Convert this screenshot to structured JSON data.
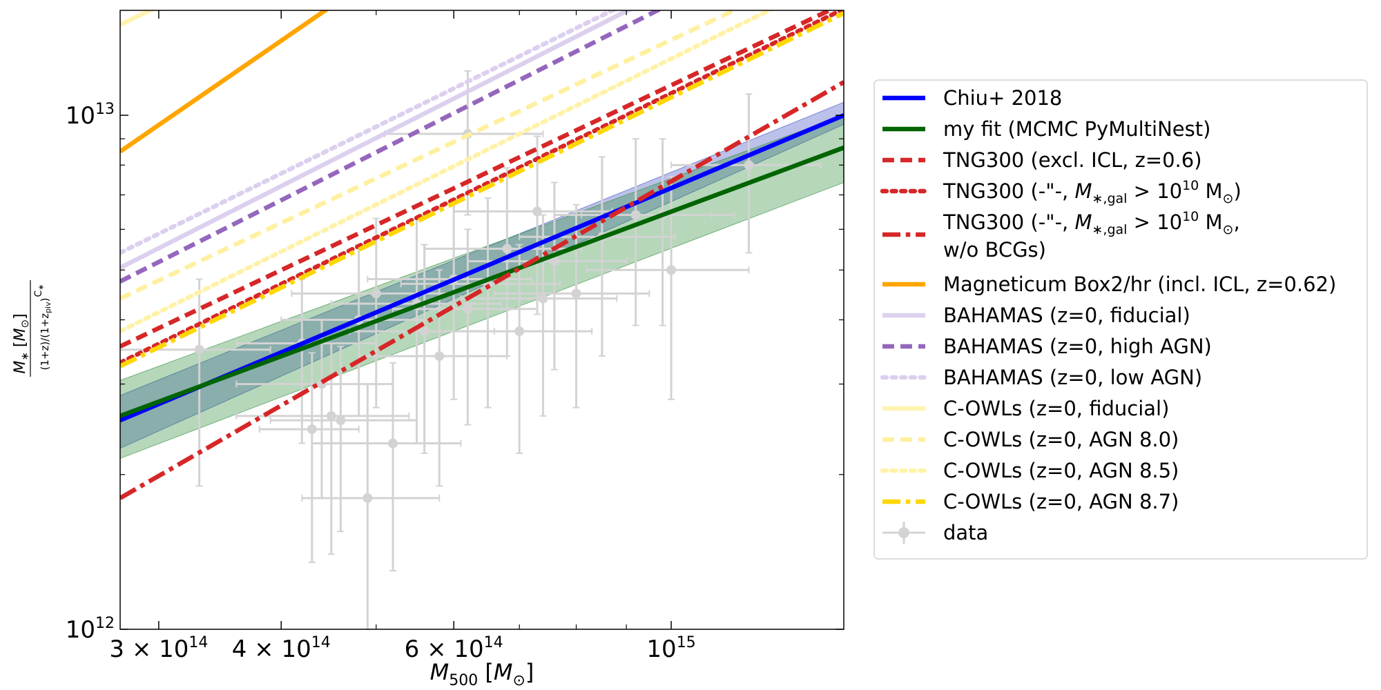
{
  "chart_data": {
    "type": "line",
    "title": "",
    "xlabel": "M500 [M⊙]",
    "ylabel": "M∗ [M⊙] / ((1+z)/(1+z_piv))^C∗",
    "xscale": "log",
    "yscale": "log",
    "xlim": [
      274000000000000.0,
      1500000000000000.0
    ],
    "ylim": [
      1000000000000.0,
      16000000000000.0
    ],
    "grid": false,
    "legend_position": "right, outside plot",
    "x_major_ticks": [
      {
        "value": 300000000000000.0,
        "label": "3×10^14",
        "base": "3 × 10",
        "exp": "14"
      },
      {
        "value": 400000000000000.0,
        "label": "4×10^14",
        "base": "4 × 10",
        "exp": "14"
      },
      {
        "value": 600000000000000.0,
        "label": "6×10^14",
        "base": "6 × 10",
        "exp": "14"
      },
      {
        "value": 1000000000000000.0,
        "label": "10^15",
        "base": "10",
        "exp": "15"
      }
    ],
    "y_major_ticks": [
      {
        "value": 1000000000000.0,
        "label": "10^12",
        "base": "10",
        "exp": "12"
      },
      {
        "value": 10000000000000.0,
        "label": "10^13",
        "base": "10",
        "exp": "13"
      }
    ],
    "x_minor_ticks": [
      500000000000000.0,
      700000000000000.0,
      800000000000000.0,
      900000000000000.0
    ],
    "y_minor_ticks": [
      2000000000000.0,
      3000000000000.0,
      4000000000000.0,
      5000000000000.0,
      6000000000000.0,
      7000000000000.0,
      8000000000000.0,
      9000000000000.0
    ],
    "series": [
      {
        "name": "Chiu+ 2018",
        "color": "#0000ff",
        "dash": "solid",
        "x": [
          274000000000000.0,
          1500000000000000.0
        ],
        "y": [
          2550000000000.0,
          10000000000000.0
        ],
        "band": {
          "color": "#3b4cc0",
          "lower": [
            2250000000000.0,
            9600000000000.0
          ],
          "upper": [
            2850000000000.0,
            10600000000000.0
          ]
        }
      },
      {
        "name": "my fit (MCMC PyMultiNest)",
        "color": "#006400",
        "dash": "solid",
        "x": [
          274000000000000.0,
          1500000000000000.0
        ],
        "y": [
          2600000000000.0,
          8650000000000.0
        ],
        "band": {
          "color": "#2e8b3a",
          "lower": [
            2150000000000.0,
            7400000000000.0
          ],
          "upper": [
            3050000000000.0,
            10000000000000.0
          ]
        }
      },
      {
        "name": "TNG300 (excl. ICL, z=0.6)",
        "color": "#d62728",
        "dash": "dashed",
        "x": [
          274000000000000.0,
          1500000000000000.0
        ],
        "y": [
          3550000000000.0,
          16500000000000.0
        ]
      },
      {
        "name": "TNG300 (-\"-, M∗,gal > 10^10 M⊙)",
        "color": "#d62728",
        "dash": "dotted",
        "x": [
          274000000000000.0,
          1500000000000000.0
        ],
        "y": [
          3300000000000.0,
          16100000000000.0
        ]
      },
      {
        "name": "TNG300 (-\"-, M∗,gal > 10^10 M⊙, w/o BCGs)",
        "color": "#d62728",
        "dash": "dashdot",
        "x": [
          274000000000000.0,
          1500000000000000.0
        ],
        "y": [
          1800000000000.0,
          11600000000000.0
        ]
      },
      {
        "name": "Magneticum Box2/hr (incl. ICL, z=0.62)",
        "color": "#ffa500",
        "dash": "solid",
        "x": [
          274000000000000.0,
          450000000000000.0
        ],
        "y": [
          8500000000000.0,
          16300000000000.0
        ]
      },
      {
        "name": "BAHAMAS (z=0, fiducial)",
        "color": "#dcd0ee",
        "dash": "solid",
        "x": [
          274000000000000.0,
          950000000000000.0
        ],
        "y": [
          5050000000000.0,
          16800000000000.0
        ]
      },
      {
        "name": "BAHAMAS (z=0, high AGN)",
        "color": "#9467bd",
        "dash": "dashed",
        "x": [
          274000000000000.0,
          1000000000000000.0
        ],
        "y": [
          4750000000000.0,
          16500000000000.0
        ]
      },
      {
        "name": "BAHAMAS (z=0, low AGN)",
        "color": "#dcd0ee",
        "dash": "dotted",
        "x": [
          274000000000000.0,
          900000000000000.0
        ],
        "y": [
          5400000000000.0,
          16500000000000.0
        ]
      },
      {
        "name": "C-OWLs (z=0, fiducial)",
        "color": "#fff3b0",
        "dash": "solid",
        "x": [
          274000000000000.0,
          310000000000000.0
        ],
        "y": [
          15000000000000.0,
          16800000000000.0
        ]
      },
      {
        "name": "C-OWLs (z=0, AGN 8.0)",
        "color": "#fff0a0",
        "dash": "dashed",
        "x": [
          274000000000000.0,
          1200000000000000.0
        ],
        "y": [
          4400000000000.0,
          16500000000000.0
        ]
      },
      {
        "name": "C-OWLs (z=0, AGN 8.5)",
        "color": "#fff2a8",
        "dash": "dotted",
        "x": [
          274000000000000.0,
          1300000000000000.0
        ],
        "y": [
          3800000000000.0,
          16500000000000.0
        ]
      },
      {
        "name": "C-OWLs (z=0, AGN 8.7)",
        "color": "#ffd700",
        "dash": "dashdot",
        "x": [
          274000000000000.0,
          1500000000000000.0
        ],
        "y": [
          3250000000000.0,
          15800000000000.0
        ]
      }
    ],
    "data_points": {
      "name": "data",
      "color": "#d3d3d3",
      "points": [
        {
          "x": 330000000000000.0,
          "y": 3500000000000.0,
          "xerr": [
            60000000000000.0,
            60000000000000.0
          ],
          "yerr": [
            1600000000000.0,
            1300000000000.0
          ]
        },
        {
          "x": 430000000000000.0,
          "y": 2450000000000.0,
          "xerr": [
            50000000000000.0,
            50000000000000.0
          ],
          "yerr": [
            1100000000000.0,
            1000000000000.0
          ]
        },
        {
          "x": 440000000000000.0,
          "y": 3000000000000.0,
          "xerr": [
            80000000000000.0,
            80000000000000.0
          ],
          "yerr": [
            1200000000000.0,
            1000000000000.0
          ]
        },
        {
          "x": 450000000000000.0,
          "y": 2600000000000.0,
          "xerr": [
            90000000000000.0,
            90000000000000.0
          ],
          "yerr": [
            1200000000000.0,
            1000000000000.0
          ]
        },
        {
          "x": 460000000000000.0,
          "y": 2550000000000.0,
          "xerr": [
            70000000000000.0,
            90000000000000.0
          ],
          "yerr": [
            1000000000000.0,
            1000000000000.0
          ]
        },
        {
          "x": 490000000000000.0,
          "y": 1800000000000.0,
          "xerr": [
            70000000000000.0,
            90000000000000.0
          ],
          "yerr": [
            800000000000.0,
            1200000000000.0
          ]
        },
        {
          "x": 520000000000000.0,
          "y": 2300000000000.0,
          "xerr": [
            90000000000000.0,
            90000000000000.0
          ],
          "yerr": [
            1000000000000.0,
            1000000000000.0
          ]
        },
        {
          "x": 420000000000000.0,
          "y": 3600000000000.0,
          "xerr": [
            60000000000000.0,
            80000000000000.0
          ],
          "yerr": [
            1300000000000.0,
            1200000000000.0
          ]
        },
        {
          "x": 480000000000000.0,
          "y": 4000000000000.0,
          "xerr": [
            80000000000000.0,
            80000000000000.0
          ],
          "yerr": [
            1400000000000.0,
            1600000000000.0
          ]
        },
        {
          "x": 500000000000000.0,
          "y": 4500000000000.0,
          "xerr": [
            90000000000000.0,
            100000000000000.0
          ],
          "yerr": [
            1800000000000.0,
            1800000000000.0
          ]
        },
        {
          "x": 550000000000000.0,
          "y": 4300000000000.0,
          "xerr": [
            100000000000000.0,
            120000000000000.0
          ],
          "yerr": [
            2000000000000.0,
            2000000000000.0
          ]
        },
        {
          "x": 560000000000000.0,
          "y": 3800000000000.0,
          "xerr": [
            90000000000000.0,
            100000000000000.0
          ],
          "yerr": [
            1600000000000.0,
            1800000000000.0
          ]
        },
        {
          "x": 580000000000000.0,
          "y": 3400000000000.0,
          "xerr": [
            100000000000000.0,
            100000000000000.0
          ],
          "yerr": [
            1500000000000.0,
            1600000000000.0
          ]
        },
        {
          "x": 600000000000000.0,
          "y": 4800000000000.0,
          "xerr": [
            110000000000000.0,
            120000000000000.0
          ],
          "yerr": [
            2000000000000.0,
            2000000000000.0
          ]
        },
        {
          "x": 620000000000000.0,
          "y": 4200000000000.0,
          "xerr": [
            100000000000000.0,
            110000000000000.0
          ],
          "yerr": [
            1700000000000.0,
            1800000000000.0
          ]
        },
        {
          "x": 650000000000000.0,
          "y": 4700000000000.0,
          "xerr": [
            120000000000000.0,
            120000000000000.0
          ],
          "yerr": [
            2000000000000.0,
            2200000000000.0
          ]
        },
        {
          "x": 680000000000000.0,
          "y": 5500000000000.0,
          "xerr": [
            120000000000000.0,
            130000000000000.0
          ],
          "yerr": [
            2100000000000.0,
            2400000000000.0
          ]
        },
        {
          "x": 700000000000000.0,
          "y": 3800000000000.0,
          "xerr": [
            120000000000000.0,
            130000000000000.0
          ],
          "yerr": [
            1600000000000.0,
            1800000000000.0
          ]
        },
        {
          "x": 730000000000000.0,
          "y": 6500000000000.0,
          "xerr": [
            130000000000000.0,
            140000000000000.0
          ],
          "yerr": [
            2400000000000.0,
            2600000000000.0
          ]
        },
        {
          "x": 760000000000000.0,
          "y": 5200000000000.0,
          "xerr": [
            140000000000000.0,
            140000000000000.0
          ],
          "yerr": [
            2000000000000.0,
            2200000000000.0
          ]
        },
        {
          "x": 740000000000000.0,
          "y": 4400000000000.0,
          "xerr": [
            130000000000000.0,
            140000000000000.0
          ],
          "yerr": [
            1800000000000.0,
            2000000000000.0
          ]
        },
        {
          "x": 800000000000000.0,
          "y": 4500000000000.0,
          "xerr": [
            140000000000000.0,
            150000000000000.0
          ],
          "yerr": [
            1800000000000.0,
            2200000000000.0
          ]
        },
        {
          "x": 850000000000000.0,
          "y": 5800000000000.0,
          "xerr": [
            150000000000000.0,
            160000000000000.0
          ],
          "yerr": [
            2400000000000.0,
            2500000000000.0
          ]
        },
        {
          "x": 920000000000000.0,
          "y": 6400000000000.0,
          "xerr": [
            160000000000000.0,
            180000000000000.0
          ],
          "yerr": [
            2500000000000.0,
            2600000000000.0
          ]
        },
        {
          "x": 980000000000000.0,
          "y": 6400000000000.0,
          "xerr": [
            170000000000000.0,
            180000000000000.0
          ],
          "yerr": [
            2500000000000.0,
            2600000000000.0
          ]
        },
        {
          "x": 1000000000000000.0,
          "y": 5000000000000.0,
          "xerr": [
            180000000000000.0,
            200000000000000.0
          ],
          "yerr": [
            2200000000000.0,
            2600000000000.0
          ]
        },
        {
          "x": 620000000000000.0,
          "y": 9200000000000.0,
          "xerr": [
            110000000000000.0,
            120000000000000.0
          ],
          "yerr": [
            2800000000000.0,
            3000000000000.0
          ]
        },
        {
          "x": 1200000000000000.0,
          "y": 8000000000000.0,
          "xerr": [
            200000000000000.0,
            220000000000000.0
          ],
          "yerr": [
            2600000000000.0,
            3000000000000.0
          ]
        }
      ]
    }
  },
  "legend": {
    "items": [
      {
        "key": "chiu",
        "label": "Chiu+ 2018",
        "color": "#0000ff",
        "dash": "solid"
      },
      {
        "key": "myfit",
        "label": "my fit (MCMC PyMultiNest)",
        "color": "#006400",
        "dash": "solid"
      },
      {
        "key": "tng_excl",
        "label": "TNG300 (excl. ICL, z=0.6)",
        "color": "#d62728",
        "dash": "dashed"
      },
      {
        "key": "tng_gal",
        "label": "TNG300 (-\"-, M∗,gal > 10^10 M⊙)",
        "color": "#d62728",
        "dash": "dotted"
      },
      {
        "key": "tng_nobcg",
        "label": "TNG300 (-\"-, M∗,gal > 10^10 M⊙, w/o BCGs)",
        "color": "#d62728",
        "dash": "dashdot"
      },
      {
        "key": "magneticum",
        "label": "Magneticum Box2/hr (incl. ICL, z=0.62)",
        "color": "#ffa500",
        "dash": "solid"
      },
      {
        "key": "bahamas_fid",
        "label": "BAHAMAS (z=0, fiducial)",
        "color": "#dcd0ee",
        "dash": "solid"
      },
      {
        "key": "bahamas_high",
        "label": "BAHAMAS (z=0, high AGN)",
        "color": "#9467bd",
        "dash": "dashed"
      },
      {
        "key": "bahamas_low",
        "label": "BAHAMAS (z=0, low AGN)",
        "color": "#dcd0ee",
        "dash": "dotted"
      },
      {
        "key": "cowls_fid",
        "label": "C-OWLs (z=0, fiducial)",
        "color": "#fff3b0",
        "dash": "solid"
      },
      {
        "key": "cowls_80",
        "label": "C-OWLs (z=0, AGN 8.0)",
        "color": "#fff0a0",
        "dash": "dashed"
      },
      {
        "key": "cowls_85",
        "label": "C-OWLs (z=0, AGN 8.5)",
        "color": "#fff2a8",
        "dash": "dotted"
      },
      {
        "key": "cowls_87",
        "label": "C-OWLs (z=0, AGN 8.7)",
        "color": "#ffd700",
        "dash": "dashdot"
      },
      {
        "key": "data",
        "label": "data",
        "color": "#d3d3d3",
        "dash": "errorbar"
      }
    ]
  }
}
